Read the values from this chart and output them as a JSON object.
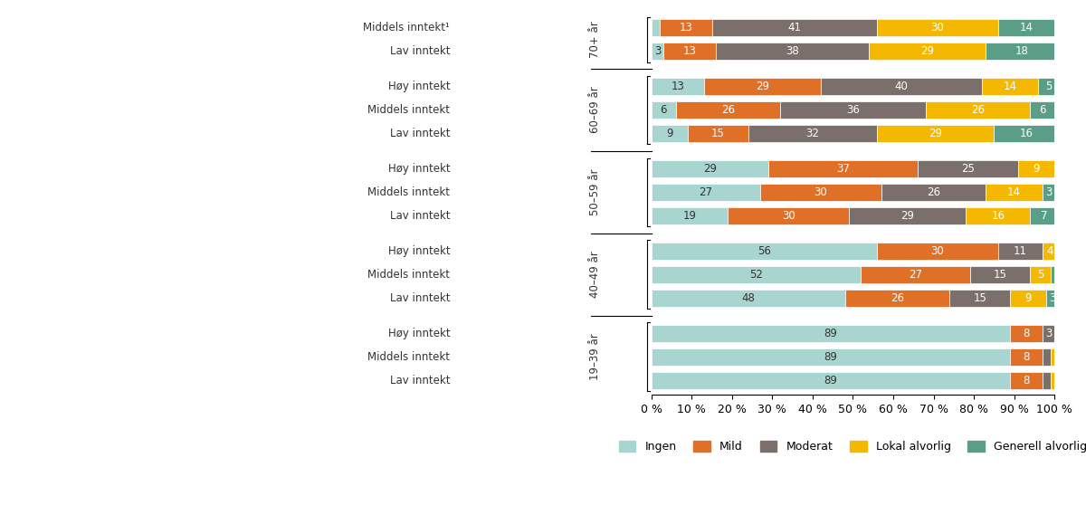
{
  "categories": [
    "19–39 år\nLav inntekt",
    "19–39 år\nMiddels inntekt",
    "19–39 år\nHøy inntekt",
    "40–49 år\nLav inntekt",
    "40–49 år\nMiddels inntekt",
    "40–49 år\nHøy inntekt",
    "50–59 år\nLav inntekt",
    "50–59 år\nMiddels inntekt",
    "50–59 år\nHøy inntekt",
    "60–69 år\nLav inntekt",
    "60–69 år\nMiddels inntekt",
    "60–69 år\nHøy inntekt",
    "70+ år\nLav inntekt",
    "70+ år\nMiddels inntekt¹"
  ],
  "row_labels": [
    "Lav inntekt",
    "Middels inntekt",
    "Høy inntekt",
    "Lav inntekt",
    "Middels inntekt",
    "Høy inntekt",
    "Lav inntekt",
    "Middels inntekt",
    "Høy inntekt",
    "Lav inntekt",
    "Middels inntekt",
    "Høy inntekt",
    "Lav inntekt",
    "Middels inntekt¹"
  ],
  "age_groups": [
    {
      "label": "19–39 år",
      "rows": [
        0,
        1,
        2
      ]
    },
    {
      "label": "40–49 år",
      "rows": [
        3,
        4,
        5
      ]
    },
    {
      "label": "50–59 år",
      "rows": [
        6,
        7,
        8
      ]
    },
    {
      "label": "60–69 år",
      "rows": [
        9,
        10,
        11
      ]
    },
    {
      "label": "70+ år",
      "rows": [
        12,
        13
      ]
    }
  ],
  "data": [
    [
      89,
      8,
      2,
      1
    ],
    [
      89,
      8,
      2,
      1
    ],
    [
      89,
      8,
      3,
      1
    ],
    [
      48,
      26,
      15,
      9,
      3
    ],
    [
      52,
      27,
      15,
      5,
      1
    ],
    [
      56,
      30,
      11,
      4,
      0
    ],
    [
      19,
      30,
      29,
      16,
      7
    ],
    [
      27,
      30,
      26,
      14,
      3
    ],
    [
      29,
      37,
      25,
      9,
      1
    ],
    [
      9,
      15,
      32,
      29,
      16
    ],
    [
      6,
      26,
      36,
      26,
      6
    ],
    [
      13,
      29,
      40,
      14,
      5
    ],
    [
      3,
      13,
      38,
      29,
      18
    ],
    [
      2,
      13,
      41,
      30,
      14
    ]
  ],
  "colors": [
    "#a8d5cf",
    "#e07028",
    "#7a6f6a",
    "#f5b800",
    "#5a9e87"
  ],
  "legend_labels": [
    "Ingen",
    "Mild",
    "Moderat",
    "Lokal alvorlig",
    "Generell alvorlig"
  ],
  "background_color": "#ffffff",
  "bar_height": 0.72,
  "text_color_dark": "#333333",
  "text_color_white": "#ffffff"
}
